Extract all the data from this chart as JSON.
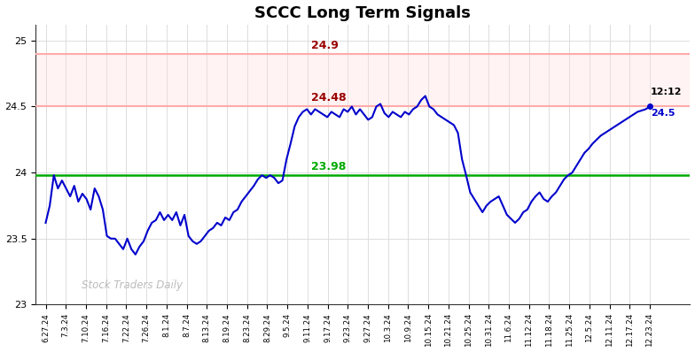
{
  "title": "SCCC Long Term Signals",
  "watermark": "Stock Traders Daily",
  "resistance1": 24.9,
  "resistance2": 24.5,
  "support": 23.98,
  "last_price": 24.5,
  "last_time": "12:12",
  "resistance1_label": "24.9",
  "resistance2_label": "24.48",
  "support_label": "23.98",
  "ylim": [
    23.0,
    25.12
  ],
  "yticks": [
    23.0,
    23.5,
    24.0,
    24.5,
    25.0
  ],
  "line_color": "#0000cc",
  "resistance_line_color": "#ffaaaa",
  "resistance_text_color": "#990000",
  "support_color": "#00aa00",
  "resistance_fill": "#ffdddd",
  "background": "#ffffff",
  "xtick_labels": [
    "6.27.24",
    "7.3.24",
    "7.10.24",
    "7.16.24",
    "7.22.24",
    "7.26.24",
    "8.1.24",
    "8.7.24",
    "8.13.24",
    "8.19.24",
    "8.23.24",
    "8.29.24",
    "9.5.24",
    "9.11.24",
    "9.17.24",
    "9.23.24",
    "9.27.24",
    "10.3.24",
    "10.9.24",
    "10.15.24",
    "10.21.24",
    "10.25.24",
    "10.31.24",
    "11.6.24",
    "11.12.24",
    "11.18.24",
    "11.25.24",
    "12.5.24",
    "12.11.24",
    "12.17.24",
    "12.23.24"
  ],
  "price_data": [
    23.62,
    23.75,
    23.98,
    23.88,
    23.94,
    23.88,
    23.82,
    23.9,
    23.78,
    23.84,
    23.8,
    23.72,
    23.88,
    23.82,
    23.72,
    23.52,
    23.5,
    23.5,
    23.46,
    23.42,
    23.5,
    23.42,
    23.38,
    23.44,
    23.48,
    23.56,
    23.62,
    23.64,
    23.7,
    23.64,
    23.68,
    23.64,
    23.7,
    23.6,
    23.68,
    23.52,
    23.48,
    23.46,
    23.48,
    23.52,
    23.56,
    23.58,
    23.62,
    23.6,
    23.66,
    23.64,
    23.7,
    23.72,
    23.78,
    23.82,
    23.86,
    23.9,
    23.95,
    23.98,
    23.96,
    23.98,
    23.96,
    23.92,
    23.94,
    24.1,
    24.22,
    24.35,
    24.42,
    24.46,
    24.48,
    24.44,
    24.48,
    24.46,
    24.44,
    24.42,
    24.46,
    24.44,
    24.42,
    24.48,
    24.46,
    24.5,
    24.44,
    24.48,
    24.44,
    24.4,
    24.42,
    24.5,
    24.52,
    24.45,
    24.42,
    24.46,
    24.44,
    24.42,
    24.46,
    24.44,
    24.48,
    24.5,
    24.55,
    24.58,
    24.5,
    24.48,
    24.44,
    24.42,
    24.4,
    24.38,
    24.36,
    24.3,
    24.1,
    23.98,
    23.85,
    23.8,
    23.75,
    23.7,
    23.75,
    23.78,
    23.8,
    23.82,
    23.75,
    23.68,
    23.65,
    23.62,
    23.65,
    23.7,
    23.72,
    23.78,
    23.82,
    23.85,
    23.8,
    23.78,
    23.82,
    23.85,
    23.9,
    23.95,
    23.98,
    24.0,
    24.05,
    24.1,
    24.15,
    24.18,
    24.22,
    24.25,
    24.28,
    24.3,
    24.32,
    24.34,
    24.36,
    24.38,
    24.4,
    24.42,
    24.44,
    24.46,
    24.47,
    24.48,
    24.5
  ]
}
